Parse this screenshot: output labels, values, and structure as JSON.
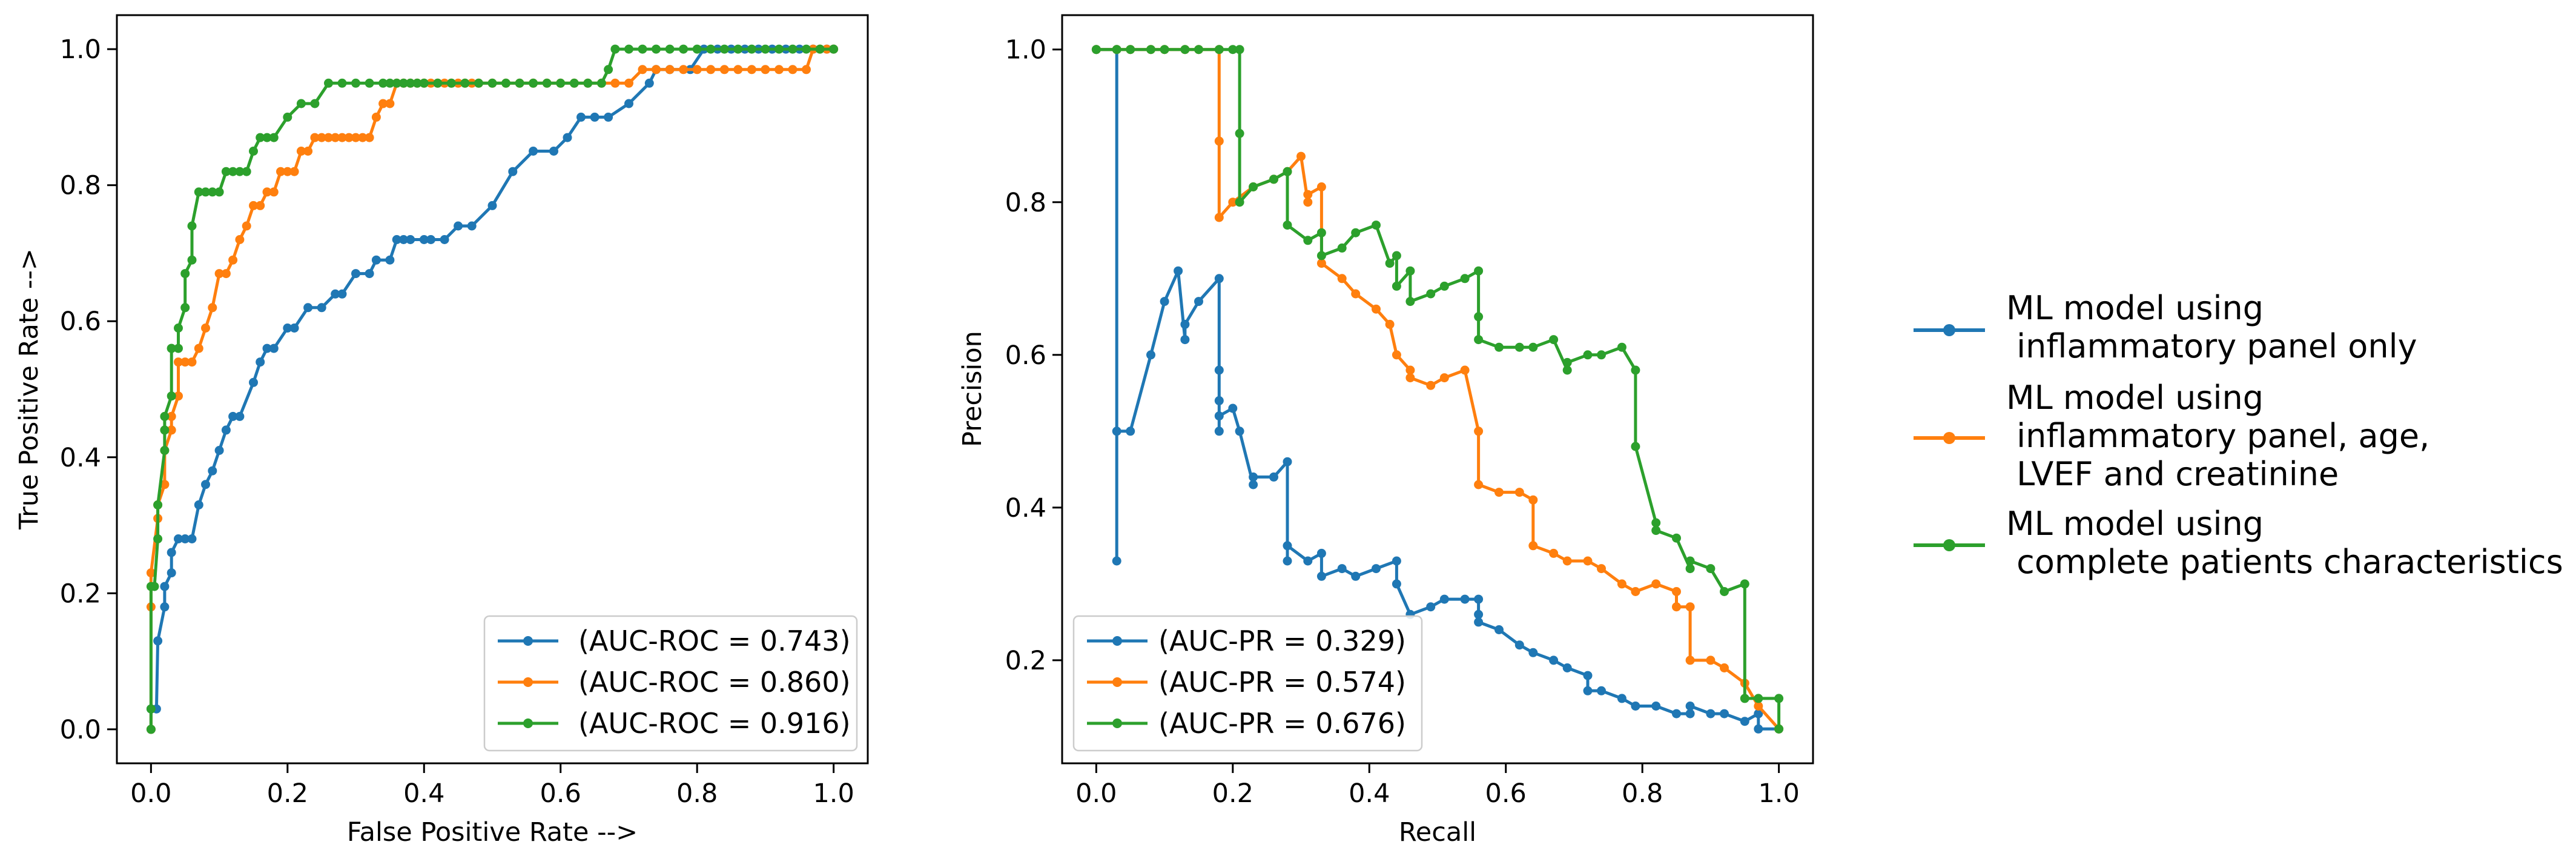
{
  "colors": {
    "blue": "#1f77b4",
    "orange": "#ff7f0e",
    "green": "#2ca02c"
  },
  "side_legend": [
    {
      "color_key": "blue",
      "lines": [
        "ML model using",
        " inflammatory panel only"
      ]
    },
    {
      "color_key": "orange",
      "lines": [
        "ML model using",
        " inflammatory panel, age,",
        " LVEF and creatinine"
      ]
    },
    {
      "color_key": "green",
      "lines": [
        "ML model using",
        " complete patients characteristics"
      ]
    }
  ],
  "chart_data": [
    {
      "type": "line",
      "id": "roc",
      "title": "",
      "xlabel": "False Positive Rate -->",
      "ylabel": "True Positive Rate -->",
      "xlim": [
        -0.05,
        1.05
      ],
      "ylim": [
        -0.05,
        1.05
      ],
      "xticks": [
        0.0,
        0.2,
        0.4,
        0.6,
        0.8,
        1.0
      ],
      "xtick_labels": [
        "0.0",
        "0.2",
        "0.4",
        "0.6",
        "0.8",
        "1.0"
      ],
      "yticks": [
        0.0,
        0.2,
        0.4,
        0.6,
        0.8,
        1.0
      ],
      "ytick_labels": [
        "0.0",
        "0.2",
        "0.4",
        "0.6",
        "0.8",
        "1.0"
      ],
      "legend_position": "lower-right",
      "series": [
        {
          "name": "(AUC-ROC = 0.743)",
          "color_key": "blue",
          "x": [
            0.0,
            0.0,
            0.008,
            0.01,
            0.02,
            0.02,
            0.03,
            0.03,
            0.04,
            0.05,
            0.06,
            0.07,
            0.08,
            0.09,
            0.1,
            0.11,
            0.12,
            0.13,
            0.15,
            0.16,
            0.17,
            0.18,
            0.2,
            0.21,
            0.23,
            0.25,
            0.27,
            0.28,
            0.3,
            0.32,
            0.33,
            0.35,
            0.36,
            0.37,
            0.38,
            0.4,
            0.41,
            0.43,
            0.45,
            0.47,
            0.5,
            0.53,
            0.56,
            0.59,
            0.61,
            0.63,
            0.65,
            0.67,
            0.7,
            0.73,
            0.74,
            0.76,
            0.79,
            0.81,
            0.83,
            0.85,
            0.87,
            0.89,
            0.91,
            0.93,
            0.95,
            0.97,
            0.99,
            1.0
          ],
          "y": [
            0.0,
            0.03,
            0.03,
            0.13,
            0.18,
            0.21,
            0.23,
            0.26,
            0.28,
            0.28,
            0.28,
            0.33,
            0.36,
            0.38,
            0.41,
            0.44,
            0.46,
            0.46,
            0.51,
            0.54,
            0.56,
            0.56,
            0.59,
            0.59,
            0.62,
            0.62,
            0.64,
            0.64,
            0.67,
            0.67,
            0.69,
            0.69,
            0.72,
            0.72,
            0.72,
            0.72,
            0.72,
            0.72,
            0.74,
            0.74,
            0.77,
            0.82,
            0.85,
            0.85,
            0.87,
            0.9,
            0.9,
            0.9,
            0.92,
            0.95,
            0.97,
            0.97,
            0.97,
            1.0,
            1.0,
            1.0,
            1.0,
            1.0,
            1.0,
            1.0,
            1.0,
            1.0,
            1.0,
            1.0
          ]
        },
        {
          "name": "(AUC-ROC = 0.860)",
          "color_key": "orange",
          "x": [
            0.0,
            0.0,
            0.0,
            0.01,
            0.01,
            0.02,
            0.02,
            0.03,
            0.03,
            0.04,
            0.04,
            0.05,
            0.06,
            0.07,
            0.08,
            0.09,
            0.1,
            0.11,
            0.12,
            0.13,
            0.14,
            0.15,
            0.16,
            0.17,
            0.18,
            0.19,
            0.2,
            0.21,
            0.22,
            0.23,
            0.24,
            0.25,
            0.26,
            0.27,
            0.28,
            0.29,
            0.3,
            0.31,
            0.32,
            0.33,
            0.34,
            0.35,
            0.36,
            0.37,
            0.38,
            0.39,
            0.4,
            0.41,
            0.42,
            0.43,
            0.44,
            0.45,
            0.46,
            0.47,
            0.48,
            0.5,
            0.52,
            0.54,
            0.56,
            0.58,
            0.6,
            0.62,
            0.64,
            0.66,
            0.68,
            0.7,
            0.72,
            0.74,
            0.76,
            0.78,
            0.8,
            0.82,
            0.84,
            0.86,
            0.88,
            0.9,
            0.92,
            0.94,
            0.96,
            0.97,
            0.98,
            0.99,
            1.0
          ],
          "y": [
            0.0,
            0.18,
            0.23,
            0.31,
            0.33,
            0.36,
            0.41,
            0.44,
            0.46,
            0.49,
            0.54,
            0.54,
            0.54,
            0.56,
            0.59,
            0.62,
            0.67,
            0.67,
            0.69,
            0.72,
            0.74,
            0.77,
            0.77,
            0.79,
            0.79,
            0.82,
            0.82,
            0.82,
            0.85,
            0.85,
            0.87,
            0.87,
            0.87,
            0.87,
            0.87,
            0.87,
            0.87,
            0.87,
            0.87,
            0.9,
            0.92,
            0.92,
            0.95,
            0.95,
            0.95,
            0.95,
            0.95,
            0.95,
            0.95,
            0.95,
            0.95,
            0.95,
            0.95,
            0.95,
            0.95,
            0.95,
            0.95,
            0.95,
            0.95,
            0.95,
            0.95,
            0.95,
            0.95,
            0.95,
            0.95,
            0.95,
            0.97,
            0.97,
            0.97,
            0.97,
            0.97,
            0.97,
            0.97,
            0.97,
            0.97,
            0.97,
            0.97,
            0.97,
            0.97,
            1.0,
            1.0,
            1.0,
            1.0
          ]
        },
        {
          "name": "(AUC-ROC = 0.916)",
          "color_key": "green",
          "x": [
            0.0,
            0.0,
            0.0,
            0.005,
            0.01,
            0.01,
            0.02,
            0.02,
            0.02,
            0.03,
            0.03,
            0.03,
            0.04,
            0.04,
            0.05,
            0.05,
            0.06,
            0.06,
            0.07,
            0.08,
            0.09,
            0.1,
            0.11,
            0.12,
            0.13,
            0.14,
            0.15,
            0.16,
            0.17,
            0.18,
            0.2,
            0.22,
            0.24,
            0.26,
            0.28,
            0.3,
            0.32,
            0.34,
            0.35,
            0.36,
            0.37,
            0.38,
            0.39,
            0.4,
            0.42,
            0.44,
            0.46,
            0.48,
            0.5,
            0.52,
            0.54,
            0.56,
            0.58,
            0.6,
            0.62,
            0.64,
            0.66,
            0.67,
            0.68,
            0.7,
            0.72,
            0.74,
            0.76,
            0.78,
            0.8,
            0.82,
            0.84,
            0.86,
            0.88,
            0.9,
            0.92,
            0.94,
            0.96,
            0.98,
            1.0
          ],
          "y": [
            0.0,
            0.03,
            0.21,
            0.21,
            0.28,
            0.33,
            0.41,
            0.44,
            0.46,
            0.49,
            0.56,
            0.56,
            0.56,
            0.59,
            0.62,
            0.67,
            0.69,
            0.74,
            0.79,
            0.79,
            0.79,
            0.79,
            0.82,
            0.82,
            0.82,
            0.82,
            0.85,
            0.87,
            0.87,
            0.87,
            0.9,
            0.92,
            0.92,
            0.95,
            0.95,
            0.95,
            0.95,
            0.95,
            0.95,
            0.95,
            0.95,
            0.95,
            0.95,
            0.95,
            0.95,
            0.95,
            0.95,
            0.95,
            0.95,
            0.95,
            0.95,
            0.95,
            0.95,
            0.95,
            0.95,
            0.95,
            0.95,
            0.97,
            1.0,
            1.0,
            1.0,
            1.0,
            1.0,
            1.0,
            1.0,
            1.0,
            1.0,
            1.0,
            1.0,
            1.0,
            1.0,
            1.0,
            1.0,
            1.0,
            1.0
          ]
        }
      ]
    },
    {
      "type": "line",
      "id": "pr",
      "title": "",
      "xlabel": "Recall",
      "ylabel": "Precision",
      "xlim": [
        -0.05,
        1.05
      ],
      "ylim": [
        0.065,
        1.045
      ],
      "xticks": [
        0.0,
        0.2,
        0.4,
        0.6,
        0.8,
        1.0
      ],
      "xtick_labels": [
        "0.0",
        "0.2",
        "0.4",
        "0.6",
        "0.8",
        "1.0"
      ],
      "yticks": [
        0.2,
        0.4,
        0.6,
        0.8,
        1.0
      ],
      "ytick_labels": [
        "0.2",
        "0.4",
        "0.6",
        "0.8",
        "1.0"
      ],
      "legend_position": "lower-left",
      "series": [
        {
          "name": "(AUC-PR = 0.329)",
          "color_key": "blue",
          "x": [
            0.0,
            0.03,
            0.03,
            0.03,
            0.05,
            0.08,
            0.1,
            0.12,
            0.13,
            0.13,
            0.15,
            0.18,
            0.18,
            0.18,
            0.18,
            0.18,
            0.2,
            0.21,
            0.23,
            0.23,
            0.26,
            0.28,
            0.28,
            0.28,
            0.31,
            0.33,
            0.33,
            0.36,
            0.38,
            0.41,
            0.44,
            0.44,
            0.46,
            0.49,
            0.51,
            0.54,
            0.56,
            0.56,
            0.56,
            0.59,
            0.62,
            0.64,
            0.67,
            0.69,
            0.72,
            0.72,
            0.74,
            0.77,
            0.79,
            0.82,
            0.85,
            0.87,
            0.87,
            0.9,
            0.92,
            0.95,
            0.97,
            0.97,
            1.0
          ],
          "y": [
            1.0,
            1.0,
            0.33,
            0.5,
            0.5,
            0.6,
            0.67,
            0.71,
            0.62,
            0.64,
            0.67,
            0.7,
            0.58,
            0.54,
            0.5,
            0.52,
            0.53,
            0.5,
            0.43,
            0.44,
            0.44,
            0.46,
            0.33,
            0.35,
            0.33,
            0.34,
            0.31,
            0.32,
            0.31,
            0.32,
            0.33,
            0.3,
            0.26,
            0.27,
            0.28,
            0.28,
            0.28,
            0.26,
            0.25,
            0.24,
            0.22,
            0.21,
            0.2,
            0.19,
            0.18,
            0.16,
            0.16,
            0.15,
            0.14,
            0.14,
            0.13,
            0.13,
            0.14,
            0.13,
            0.13,
            0.12,
            0.13,
            0.11,
            0.11
          ]
        },
        {
          "name": "(AUC-PR = 0.574)",
          "color_key": "orange",
          "x": [
            0.0,
            0.03,
            0.05,
            0.08,
            0.1,
            0.13,
            0.15,
            0.18,
            0.18,
            0.18,
            0.2,
            0.23,
            0.26,
            0.28,
            0.3,
            0.31,
            0.31,
            0.33,
            0.33,
            0.36,
            0.38,
            0.41,
            0.43,
            0.44,
            0.46,
            0.46,
            0.49,
            0.51,
            0.54,
            0.56,
            0.56,
            0.59,
            0.62,
            0.64,
            0.64,
            0.67,
            0.69,
            0.72,
            0.74,
            0.77,
            0.79,
            0.82,
            0.85,
            0.85,
            0.87,
            0.87,
            0.9,
            0.92,
            0.95,
            0.97,
            1.0
          ],
          "y": [
            1.0,
            1.0,
            1.0,
            1.0,
            1.0,
            1.0,
            1.0,
            1.0,
            0.88,
            0.78,
            0.8,
            0.82,
            0.83,
            0.84,
            0.86,
            0.8,
            0.81,
            0.82,
            0.72,
            0.7,
            0.68,
            0.66,
            0.64,
            0.6,
            0.58,
            0.57,
            0.56,
            0.57,
            0.58,
            0.5,
            0.43,
            0.42,
            0.42,
            0.41,
            0.35,
            0.34,
            0.33,
            0.33,
            0.32,
            0.3,
            0.29,
            0.3,
            0.29,
            0.27,
            0.27,
            0.2,
            0.2,
            0.19,
            0.17,
            0.14,
            0.11
          ]
        },
        {
          "name": "(AUC-PR = 0.676)",
          "color_key": "green",
          "x": [
            0.0,
            0.03,
            0.05,
            0.08,
            0.1,
            0.13,
            0.15,
            0.18,
            0.2,
            0.21,
            0.21,
            0.21,
            0.23,
            0.26,
            0.28,
            0.28,
            0.31,
            0.33,
            0.33,
            0.36,
            0.38,
            0.41,
            0.43,
            0.44,
            0.44,
            0.46,
            0.46,
            0.49,
            0.51,
            0.54,
            0.56,
            0.56,
            0.56,
            0.59,
            0.62,
            0.64,
            0.67,
            0.69,
            0.69,
            0.72,
            0.74,
            0.77,
            0.79,
            0.79,
            0.82,
            0.82,
            0.85,
            0.87,
            0.87,
            0.9,
            0.92,
            0.95,
            0.95,
            0.97,
            1.0,
            1.0
          ],
          "y": [
            1.0,
            1.0,
            1.0,
            1.0,
            1.0,
            1.0,
            1.0,
            1.0,
            1.0,
            1.0,
            0.89,
            0.8,
            0.82,
            0.83,
            0.84,
            0.77,
            0.75,
            0.76,
            0.73,
            0.74,
            0.76,
            0.77,
            0.72,
            0.73,
            0.69,
            0.71,
            0.67,
            0.68,
            0.69,
            0.7,
            0.71,
            0.65,
            0.62,
            0.61,
            0.61,
            0.61,
            0.62,
            0.58,
            0.59,
            0.6,
            0.6,
            0.61,
            0.58,
            0.48,
            0.38,
            0.37,
            0.36,
            0.32,
            0.33,
            0.32,
            0.29,
            0.3,
            0.15,
            0.15,
            0.15,
            0.11
          ]
        }
      ]
    }
  ]
}
